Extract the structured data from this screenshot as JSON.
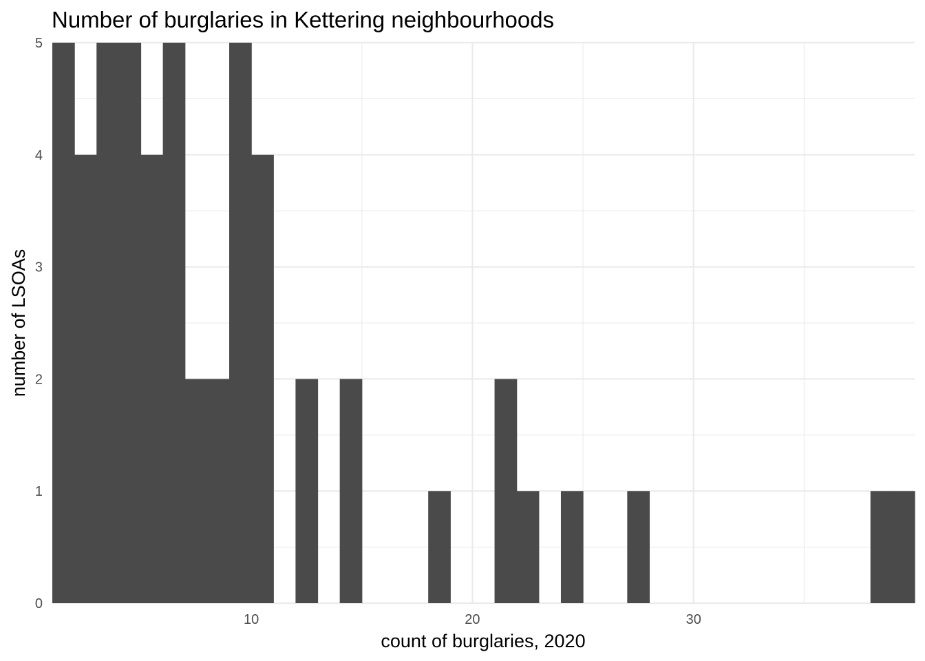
{
  "chart_data": {
    "type": "bar",
    "title": "Number of burglaries in Kettering neighbourhoods",
    "xlabel": "count of burglaries, 2020",
    "ylabel": "number of LSOAs",
    "xlim": [
      1,
      40
    ],
    "ylim": [
      0,
      5
    ],
    "x_ticks": [
      10,
      20,
      30
    ],
    "y_ticks": [
      0,
      1,
      2,
      3,
      4,
      5
    ],
    "y_minor_ticks": [
      0.5,
      1.5,
      2.5,
      3.5,
      4.5
    ],
    "x_minor_ticks": [
      5,
      15,
      25,
      35
    ],
    "bin_width": 1,
    "bins": [
      {
        "x": 1.5,
        "count": 5
      },
      {
        "x": 2.5,
        "count": 4
      },
      {
        "x": 3.5,
        "count": 5
      },
      {
        "x": 4.5,
        "count": 5
      },
      {
        "x": 5.5,
        "count": 4
      },
      {
        "x": 6.5,
        "count": 5
      },
      {
        "x": 7.5,
        "count": 2
      },
      {
        "x": 8.5,
        "count": 2
      },
      {
        "x": 9.5,
        "count": 5
      },
      {
        "x": 10.5,
        "count": 4
      },
      {
        "x": 11.5,
        "count": 0
      },
      {
        "x": 12.5,
        "count": 2
      },
      {
        "x": 13.5,
        "count": 0
      },
      {
        "x": 14.5,
        "count": 2
      },
      {
        "x": 15.5,
        "count": 0
      },
      {
        "x": 16.5,
        "count": 0
      },
      {
        "x": 17.5,
        "count": 0
      },
      {
        "x": 18.5,
        "count": 1
      },
      {
        "x": 19.5,
        "count": 0
      },
      {
        "x": 20.5,
        "count": 0
      },
      {
        "x": 21.5,
        "count": 2
      },
      {
        "x": 22.5,
        "count": 1
      },
      {
        "x": 23.5,
        "count": 0
      },
      {
        "x": 24.5,
        "count": 1
      },
      {
        "x": 25.5,
        "count": 0
      },
      {
        "x": 26.5,
        "count": 0
      },
      {
        "x": 27.5,
        "count": 1
      },
      {
        "x": 28.5,
        "count": 0
      },
      {
        "x": 29.5,
        "count": 0
      },
      {
        "x": 30.5,
        "count": 0
      },
      {
        "x": 31.5,
        "count": 0
      },
      {
        "x": 32.5,
        "count": 0
      },
      {
        "x": 33.5,
        "count": 0
      },
      {
        "x": 34.5,
        "count": 0
      },
      {
        "x": 35.5,
        "count": 0
      },
      {
        "x": 36.5,
        "count": 0
      },
      {
        "x": 37.5,
        "count": 0
      },
      {
        "x": 38.5,
        "count": 1
      },
      {
        "x": 39.5,
        "count": 1
      }
    ],
    "bar_color": "#4a4a4a",
    "grid": true,
    "legend": "none"
  }
}
